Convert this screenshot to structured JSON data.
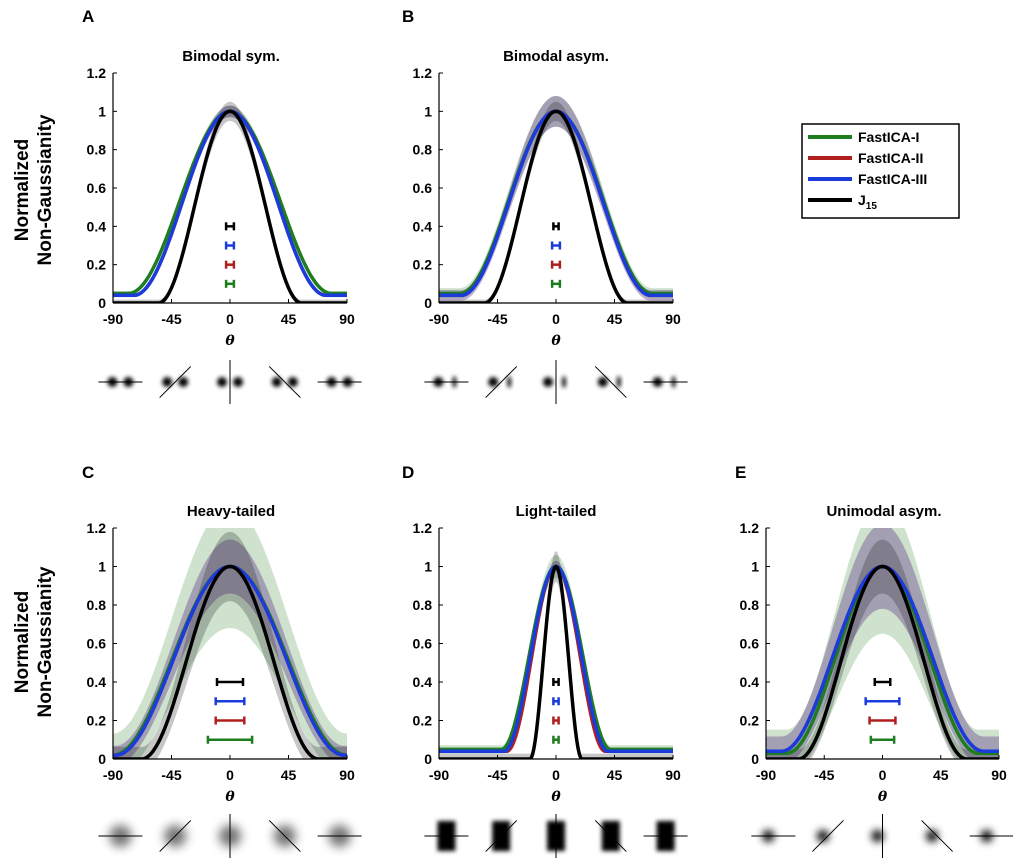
{
  "figure": {
    "y_axis_label_lines": [
      "Normalized",
      "Non-Gaussianity"
    ],
    "x_axis_symbol": "θ",
    "legend": [
      {
        "label": "FastICA-I",
        "color": "#1e7d1e"
      },
      {
        "label": "FastICA-II",
        "color": "#b01e1e"
      },
      {
        "label": "FastICA-III",
        "color": "#1a3cdc"
      },
      {
        "label": "J",
        "subscript": "15",
        "color": "#000000"
      }
    ]
  },
  "chart_data": [
    {
      "panel": "A",
      "type": "line",
      "title": "Bimodal sym.",
      "xlabel": "θ",
      "ylabel": "Normalized Non-Gaussianity",
      "xlim": [
        -90,
        90
      ],
      "ylim": [
        0,
        1.2
      ],
      "xticks": [
        -90,
        -45,
        0,
        45,
        90
      ],
      "yticks": [
        0,
        0.2,
        0.4,
        0.6,
        0.8,
        1,
        1.2
      ],
      "series": [
        {
          "name": "FastICA-I",
          "color": "#1e7d1e",
          "width_deg": 156,
          "floor": 0.05,
          "band": 0.03
        },
        {
          "name": "FastICA-II",
          "color": "#b01e1e",
          "width_deg": 148,
          "floor": 0.04,
          "band": 0.03
        },
        {
          "name": "FastICA-III",
          "color": "#1a3cdc",
          "width_deg": 148,
          "floor": 0.04,
          "band": 0.03
        },
        {
          "name": "J15",
          "color": "#000000",
          "width_deg": 110,
          "floor": 0.0,
          "band": 0.05
        }
      ],
      "error_bars": [
        {
          "name": "J15",
          "y": 0.4,
          "halfwidth": 3
        },
        {
          "name": "FastICA-III",
          "y": 0.3,
          "halfwidth": 3
        },
        {
          "name": "FastICA-II",
          "y": 0.2,
          "halfwidth": 3
        },
        {
          "name": "FastICA-I",
          "y": 0.1,
          "halfwidth": 3
        }
      ],
      "thumbnails": {
        "style": "bimodal-sym",
        "angles": [
          -90,
          -45,
          0,
          45,
          90
        ]
      }
    },
    {
      "panel": "B",
      "type": "line",
      "title": "Bimodal asym.",
      "xlabel": "θ",
      "ylabel": "",
      "xlim": [
        -90,
        90
      ],
      "ylim": [
        0,
        1.2
      ],
      "xticks": [
        -90,
        -45,
        0,
        45,
        90
      ],
      "yticks": [
        0,
        0.2,
        0.4,
        0.6,
        0.8,
        1,
        1.2
      ],
      "series": [
        {
          "name": "FastICA-I",
          "color": "#1e7d1e",
          "width_deg": 148,
          "floor": 0.05,
          "band": 0.08
        },
        {
          "name": "FastICA-II",
          "color": "#b01e1e",
          "width_deg": 146,
          "floor": 0.04,
          "band": 0.08
        },
        {
          "name": "FastICA-III",
          "color": "#1a3cdc",
          "width_deg": 146,
          "floor": 0.04,
          "band": 0.08
        },
        {
          "name": "J15",
          "color": "#000000",
          "width_deg": 110,
          "floor": 0.0,
          "band": 0.05
        }
      ],
      "error_bars": [
        {
          "name": "J15",
          "y": 0.4,
          "halfwidth": 2
        },
        {
          "name": "FastICA-III",
          "y": 0.3,
          "halfwidth": 3
        },
        {
          "name": "FastICA-II",
          "y": 0.2,
          "halfwidth": 3
        },
        {
          "name": "FastICA-I",
          "y": 0.1,
          "halfwidth": 3
        }
      ],
      "thumbnails": {
        "style": "bimodal-asym",
        "angles": [
          -90,
          -45,
          0,
          45,
          90
        ]
      }
    },
    {
      "panel": "C",
      "type": "line",
      "title": "Heavy-tailed",
      "xlabel": "θ",
      "ylabel": "Normalized Non-Gaussianity",
      "xlim": [
        -90,
        90
      ],
      "ylim": [
        0,
        1.2
      ],
      "xticks": [
        -90,
        -45,
        0,
        45,
        90
      ],
      "yticks": [
        0,
        0.2,
        0.4,
        0.6,
        0.8,
        1,
        1.2
      ],
      "series": [
        {
          "name": "FastICA-I",
          "color": "#1e7d1e",
          "width_deg": 180,
          "floor": 0.02,
          "band": 0.32
        },
        {
          "name": "FastICA-II",
          "color": "#b01e1e",
          "width_deg": 176,
          "floor": 0.02,
          "band": 0.14
        },
        {
          "name": "FastICA-III",
          "color": "#1a3cdc",
          "width_deg": 176,
          "floor": 0.02,
          "band": 0.14
        },
        {
          "name": "J15",
          "color": "#000000",
          "width_deg": 136,
          "floor": 0.0,
          "band": 0.18
        }
      ],
      "error_bars": [
        {
          "name": "J15",
          "y": 0.4,
          "halfwidth": 10
        },
        {
          "name": "FastICA-III",
          "y": 0.3,
          "halfwidth": 11
        },
        {
          "name": "FastICA-II",
          "y": 0.2,
          "halfwidth": 11
        },
        {
          "name": "FastICA-I",
          "y": 0.1,
          "halfwidth": 17
        }
      ],
      "thumbnails": {
        "style": "heavy",
        "angles": [
          -90,
          -45,
          0,
          45,
          90
        ]
      }
    },
    {
      "panel": "D",
      "type": "line",
      "title": "Light-tailed",
      "xlabel": "θ",
      "ylabel": "",
      "xlim": [
        -90,
        90
      ],
      "ylim": [
        0,
        1.2
      ],
      "xticks": [
        -90,
        -45,
        0,
        45,
        90
      ],
      "yticks": [
        0,
        0.2,
        0.4,
        0.6,
        0.8,
        1,
        1.2
      ],
      "series": [
        {
          "name": "FastICA-I",
          "color": "#1e7d1e",
          "width_deg": 84,
          "floor": 0.05,
          "band": 0.06
        },
        {
          "name": "FastICA-II",
          "color": "#b01e1e",
          "width_deg": 76,
          "floor": 0.04,
          "band": 0.03
        },
        {
          "name": "FastICA-III",
          "color": "#1a3cdc",
          "width_deg": 80,
          "floor": 0.04,
          "band": 0.03
        },
        {
          "name": "J15",
          "color": "#000000",
          "width_deg": 40,
          "floor": 0.0,
          "band": 0.08
        }
      ],
      "error_bars": [
        {
          "name": "J15",
          "y": 0.4,
          "halfwidth": 2
        },
        {
          "name": "FastICA-III",
          "y": 0.3,
          "halfwidth": 2
        },
        {
          "name": "FastICA-II",
          "y": 0.2,
          "halfwidth": 2
        },
        {
          "name": "FastICA-I",
          "y": 0.1,
          "halfwidth": 2
        }
      ],
      "thumbnails": {
        "style": "light",
        "angles": [
          -90,
          -45,
          0,
          45,
          90
        ]
      }
    },
    {
      "panel": "E",
      "type": "line",
      "title": "Unimodal asym.",
      "xlabel": "θ",
      "ylabel": "",
      "xlim": [
        -90,
        90
      ],
      "ylim": [
        0,
        1.2
      ],
      "xticks": [
        -90,
        -45,
        0,
        45,
        90
      ],
      "yticks": [
        0,
        0.2,
        0.4,
        0.6,
        0.8,
        1,
        1.2
      ],
      "series": [
        {
          "name": "FastICA-I",
          "color": "#1e7d1e",
          "width_deg": 148,
          "floor": 0.03,
          "band": 0.35
        },
        {
          "name": "FastICA-II",
          "color": "#b01e1e",
          "width_deg": 156,
          "floor": 0.04,
          "band": 0.22
        },
        {
          "name": "FastICA-III",
          "color": "#1a3cdc",
          "width_deg": 156,
          "floor": 0.04,
          "band": 0.22
        },
        {
          "name": "J15",
          "color": "#000000",
          "width_deg": 130,
          "floor": 0.0,
          "band": 0.14
        }
      ],
      "error_bars": [
        {
          "name": "J15",
          "y": 0.4,
          "halfwidth": 6
        },
        {
          "name": "FastICA-III",
          "y": 0.3,
          "halfwidth": 13
        },
        {
          "name": "FastICA-II",
          "y": 0.2,
          "halfwidth": 10
        },
        {
          "name": "FastICA-I",
          "y": 0.1,
          "halfwidth": 9
        }
      ],
      "thumbnails": {
        "style": "unimodal",
        "angles": [
          -90,
          -45,
          0,
          45,
          90
        ]
      }
    }
  ]
}
